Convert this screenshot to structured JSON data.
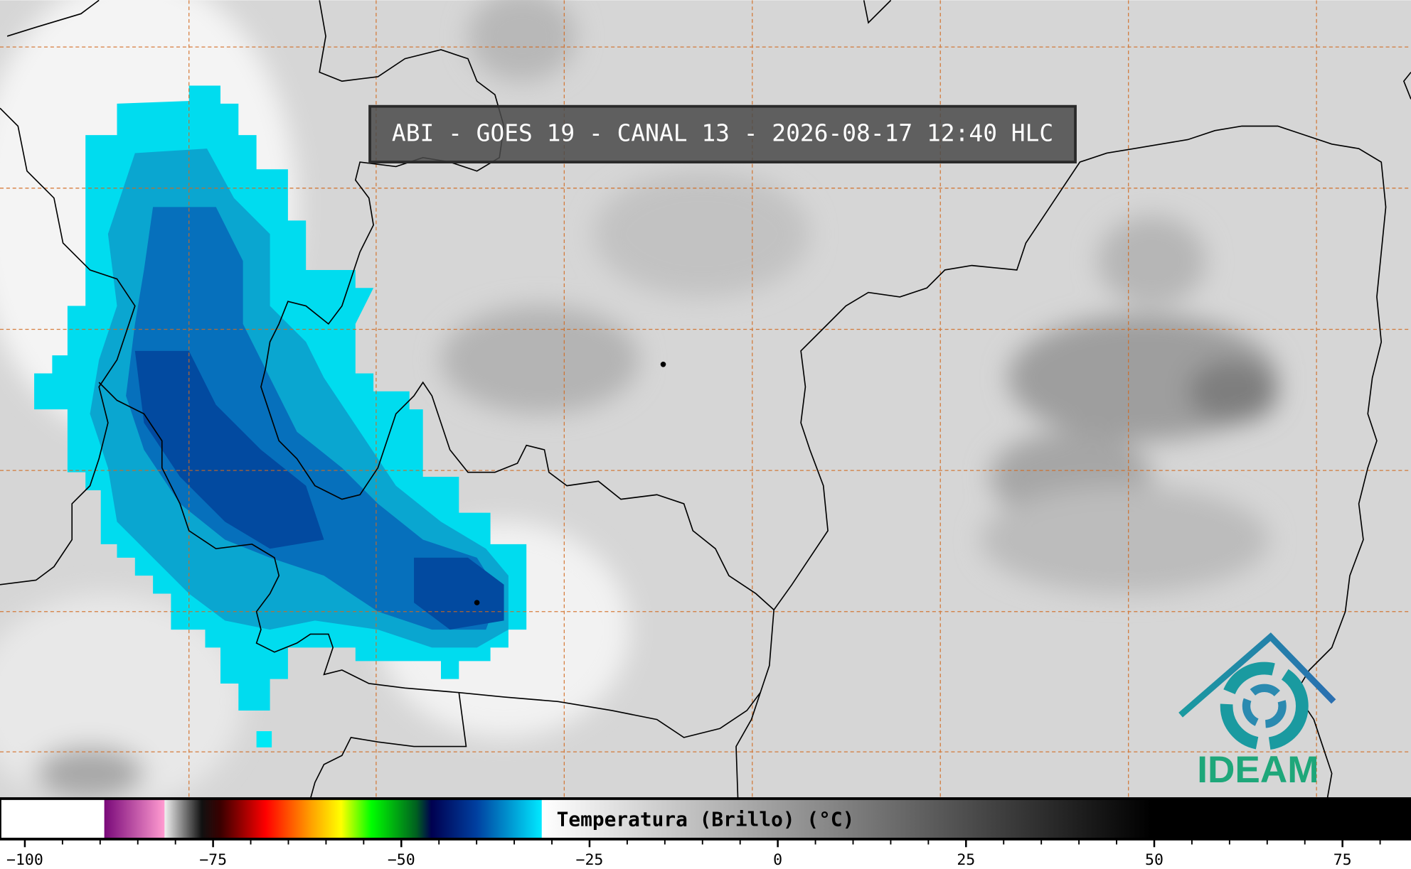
{
  "title": "ABI - GOES 19 - CANAL 13 - 2026-08-17 12:40 HLC",
  "logo": "IDEAM",
  "colorbar": {
    "label": "Temperatura (Brillo) (°C)",
    "xlim": [
      -103.3,
      84.1
    ],
    "xticks": [
      {
        "value": -100,
        "label": "−100"
      },
      {
        "value": -75,
        "label": "−75"
      },
      {
        "value": -50,
        "label": "−50"
      },
      {
        "value": -25,
        "label": "−25"
      },
      0,
      25,
      50,
      75
    ],
    "minor_xticks": [
      -95,
      -90,
      -85,
      -80,
      -70,
      -65,
      -60,
      -55,
      -45,
      -40,
      -35,
      -30,
      -20,
      -15,
      -10,
      -5,
      5,
      10,
      15,
      20,
      30,
      35,
      40,
      45,
      55,
      60,
      65,
      70,
      80
    ],
    "colormap": [
      {
        "value": -103.3,
        "color": "#ffffff"
      },
      {
        "value": -89.5,
        "color": "#ffffff"
      },
      {
        "value": -89.4,
        "color": "#7a0a7a"
      },
      {
        "value": -81.5,
        "color": "#ff9ad0"
      },
      {
        "value": -81.4,
        "color": "#eeeeee"
      },
      {
        "value": -76.5,
        "color": "#111111"
      },
      {
        "value": -74,
        "color": "#3a0000"
      },
      {
        "value": -68,
        "color": "#ff0000"
      },
      {
        "value": -62,
        "color": "#ffa000"
      },
      {
        "value": -58,
        "color": "#ffff00"
      },
      {
        "value": -54,
        "color": "#00ff00"
      },
      {
        "value": -48,
        "color": "#006020"
      },
      {
        "value": -46,
        "color": "#000050"
      },
      {
        "value": -40,
        "color": "#0040a0"
      },
      {
        "value": -31.4,
        "color": "#00e8ff"
      },
      {
        "value": -31.3,
        "color": "#ffffff"
      },
      {
        "value": 49.6,
        "color": "#000000"
      },
      {
        "value": 84.1,
        "color": "#000000"
      }
    ]
  }
}
